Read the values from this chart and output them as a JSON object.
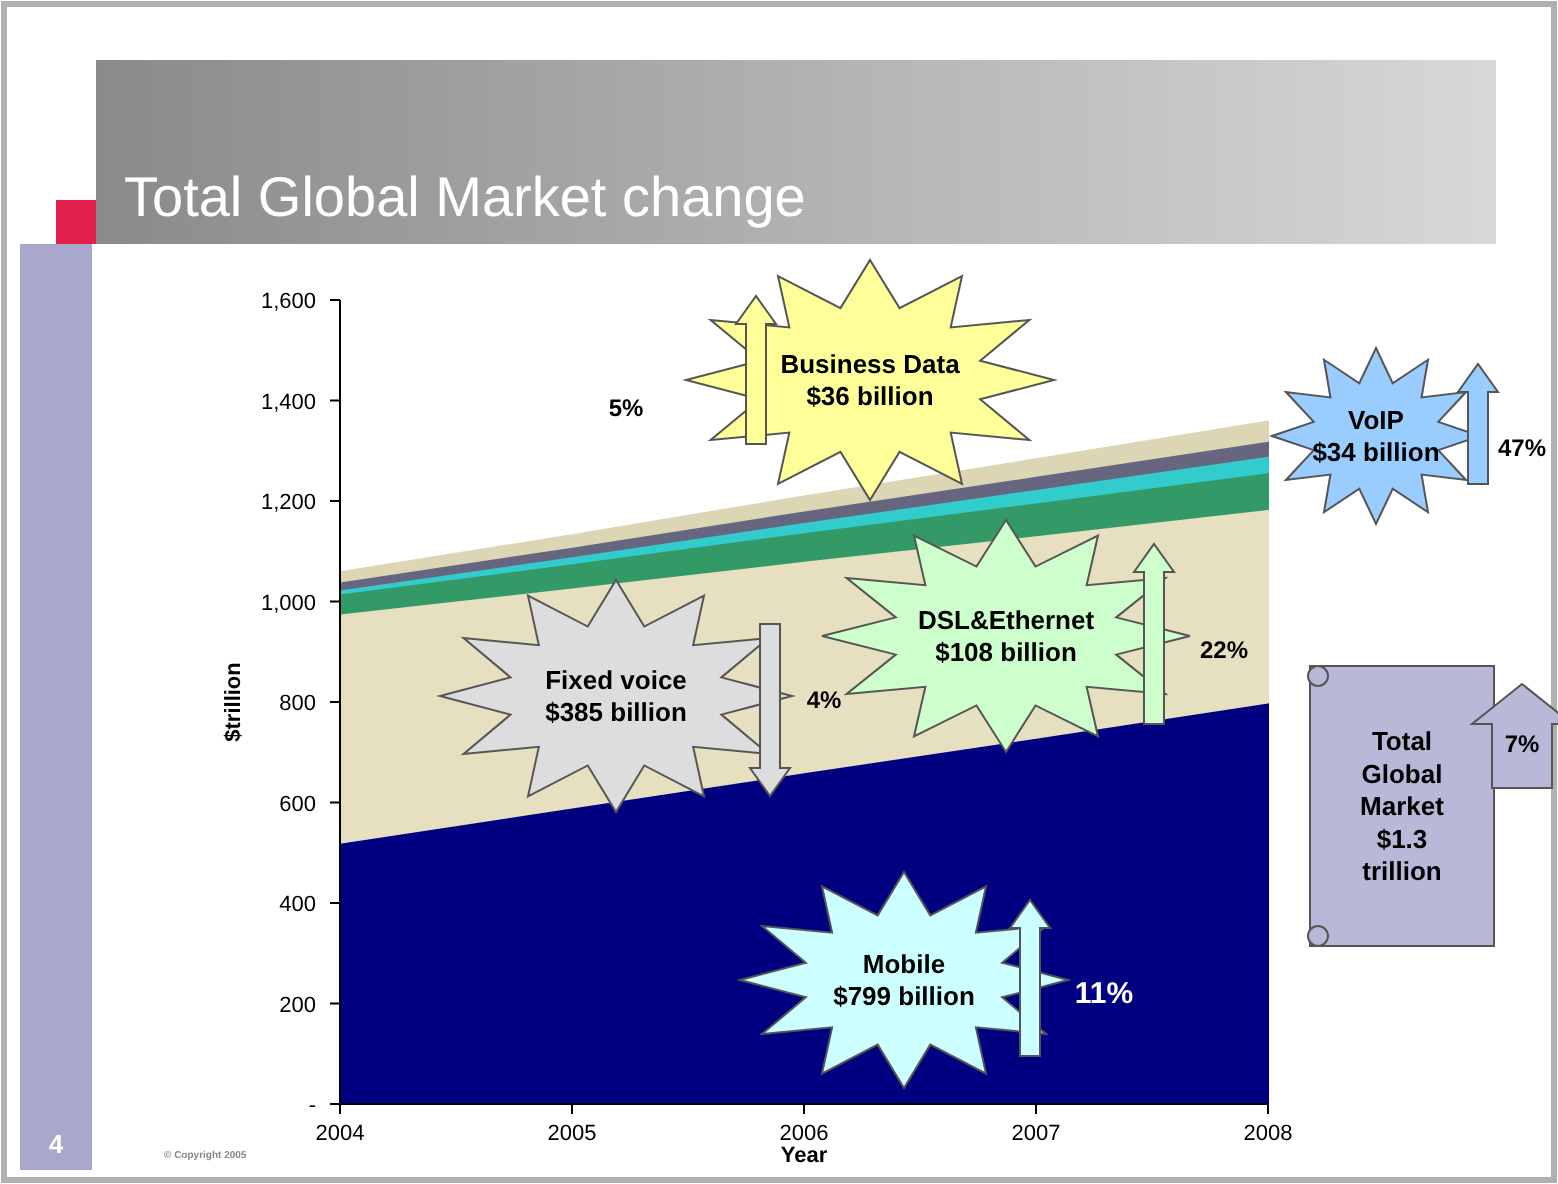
{
  "chart_data": {
    "type": "area",
    "title": "Total Global Market change",
    "xlabel": "Year",
    "ylabel": "$trillion",
    "stacked": true,
    "x": [
      2004,
      2005,
      2006,
      2007,
      2008
    ],
    "xlim": [
      2004,
      2008
    ],
    "xticks": [
      2004,
      2005,
      2006,
      2007,
      2008
    ],
    "ylim": [
      0,
      1600
    ],
    "yticks": [
      {
        "value": 0,
        "label": "-"
      },
      200,
      400,
      600,
      800,
      {
        "value": 1000,
        "label": "1,000"
      },
      {
        "value": 1200,
        "label": "1,200"
      },
      {
        "value": 1400,
        "label": "1,400"
      },
      {
        "value": 1600,
        "label": "1,600"
      }
    ],
    "series": [
      {
        "color": "#000080",
        "values": [
          520,
          590,
          660,
          729,
          799
        ]
      },
      {
        "color": "#e6dfc0",
        "values": [
          456,
          438,
          421,
          403,
          385
        ]
      },
      {
        "color": "#339966",
        "values": [
          40,
          48,
          57,
          65,
          73
        ]
      },
      {
        "color": "#33cccc",
        "values": [
          8,
          14,
          20,
          27,
          33
        ]
      },
      {
        "color": "#666680",
        "values": [
          16,
          19,
          23,
          26,
          30
        ]
      },
      {
        "color": "#ddd6b4",
        "values": [
          18,
          23,
          28,
          33,
          38
        ]
      }
    ],
    "annotations": [
      "Business Data\n$36 billion",
      "5%",
      "VoIP\n$34 billion",
      "47%",
      "DSL&Ethernet\n$108 billion",
      "22%",
      "Fixed voice\n$385 billion",
      "4%",
      "Mobile\n$799 billion",
      "11%",
      "Total\nGlobal\nMarket\n$1.3\ntrillion",
      "7%",
      "4",
      "© Copyright 2005"
    ]
  }
}
